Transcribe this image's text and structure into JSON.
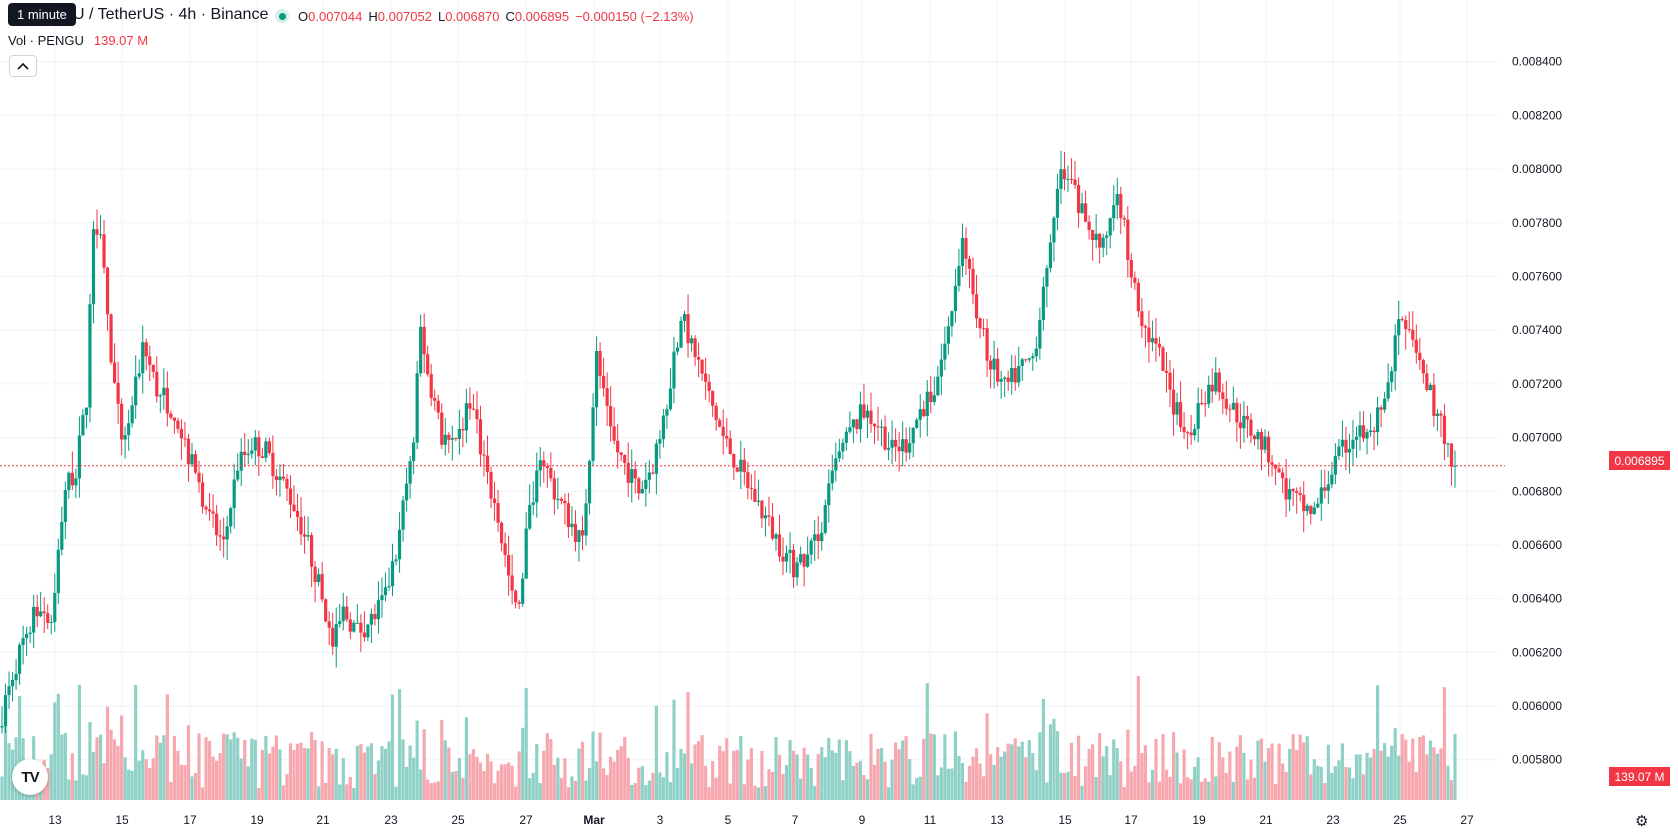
{
  "tooltip": "1 minute",
  "header": {
    "symbol": "U / TetherUS · 4h · Binance",
    "open_label": "O",
    "open": "0.007044",
    "high_label": "H",
    "high": "0.007052",
    "low_label": "L",
    "low": "0.006870",
    "close_label": "C",
    "close": "0.006895",
    "change": "−0.000150 (−2.13%)"
  },
  "volume": {
    "label": "Vol · PENGU",
    "value": "139.07 M",
    "tag": "139.07 M"
  },
  "current_price_tag": "0.006895",
  "logo_text": "TV",
  "colors": {
    "up": "#089981",
    "down": "#f23645",
    "up_volume": "#8fd1c6",
    "down_volume": "#f7a7ae",
    "grid": "#f0f3fa"
  },
  "chart_data": {
    "type": "candlestick",
    "title": "U / TetherUS · 4h · Binance",
    "current_price": 0.006895,
    "y_axis_ticks": [
      "0.008400",
      "0.008200",
      "0.008000",
      "0.007800",
      "0.007600",
      "0.007400",
      "0.007200",
      "0.007000",
      "0.006800",
      "0.006600",
      "0.006400",
      "0.006200",
      "0.006000",
      "0.005800"
    ],
    "x_axis_ticks": [
      "13",
      "15",
      "17",
      "19",
      "21",
      "23",
      "25",
      "27",
      "Mar",
      "3",
      "5",
      "7",
      "9",
      "11",
      "13",
      "15",
      "17",
      "19",
      "21",
      "23",
      "25",
      "27"
    ],
    "ylim": [
      0.00565,
      0.0086
    ],
    "grid": true,
    "trend_anchors": [
      [
        0,
        0.00592
      ],
      [
        4,
        0.00612
      ],
      [
        8,
        0.00628
      ],
      [
        12,
        0.00638
      ],
      [
        15,
        0.00632
      ],
      [
        19,
        0.00682
      ],
      [
        22,
        0.00688
      ],
      [
        25,
        0.00715
      ],
      [
        27,
        0.0078
      ],
      [
        29,
        0.0078
      ],
      [
        32,
        0.00728
      ],
      [
        35,
        0.007
      ],
      [
        38,
        0.0071
      ],
      [
        41,
        0.00735
      ],
      [
        45,
        0.00718
      ],
      [
        50,
        0.0071
      ],
      [
        55,
        0.0069
      ],
      [
        60,
        0.0067
      ],
      [
        64,
        0.0066
      ],
      [
        68,
        0.0069
      ],
      [
        72,
        0.00698
      ],
      [
        76,
        0.00695
      ],
      [
        80,
        0.00685
      ],
      [
        84,
        0.00675
      ],
      [
        88,
        0.0066
      ],
      [
        92,
        0.0064
      ],
      [
        95,
        0.00622
      ],
      [
        98,
        0.00635
      ],
      [
        102,
        0.00628
      ],
      [
        106,
        0.00632
      ],
      [
        110,
        0.0064
      ],
      [
        114,
        0.00665
      ],
      [
        118,
        0.007
      ],
      [
        120,
        0.0074
      ],
      [
        122,
        0.00725
      ],
      [
        126,
        0.007
      ],
      [
        130,
        0.00695
      ],
      [
        134,
        0.00715
      ],
      [
        138,
        0.0069
      ],
      [
        142,
        0.0067
      ],
      [
        146,
        0.0064
      ],
      [
        148,
        0.00635
      ],
      [
        150,
        0.00665
      ],
      [
        154,
        0.00695
      ],
      [
        158,
        0.0068
      ],
      [
        162,
        0.0067
      ],
      [
        166,
        0.0066
      ],
      [
        170,
        0.0073
      ],
      [
        174,
        0.007
      ],
      [
        178,
        0.0069
      ],
      [
        182,
        0.0068
      ],
      [
        186,
        0.0069
      ],
      [
        190,
        0.00715
      ],
      [
        194,
        0.00745
      ],
      [
        198,
        0.00732
      ],
      [
        202,
        0.00715
      ],
      [
        206,
        0.007
      ],
      [
        210,
        0.0069
      ],
      [
        214,
        0.0068
      ],
      [
        218,
        0.0067
      ],
      [
        222,
        0.0066
      ],
      [
        226,
        0.00652
      ],
      [
        230,
        0.00655
      ],
      [
        234,
        0.00668
      ],
      [
        238,
        0.0069
      ],
      [
        242,
        0.00702
      ],
      [
        246,
        0.0071
      ],
      [
        250,
        0.00705
      ],
      [
        254,
        0.00695
      ],
      [
        258,
        0.00698
      ],
      [
        262,
        0.0071
      ],
      [
        266,
        0.00718
      ],
      [
        270,
        0.0074
      ],
      [
        274,
        0.00775
      ],
      [
        278,
        0.00745
      ],
      [
        282,
        0.00728
      ],
      [
        286,
        0.00718
      ],
      [
        290,
        0.00725
      ],
      [
        294,
        0.0073
      ],
      [
        298,
        0.0076
      ],
      [
        302,
        0.008
      ],
      [
        306,
        0.0079
      ],
      [
        310,
        0.00778
      ],
      [
        314,
        0.0077
      ],
      [
        318,
        0.00795
      ],
      [
        322,
        0.0076
      ],
      [
        326,
        0.0074
      ],
      [
        330,
        0.0073
      ],
      [
        334,
        0.00712
      ],
      [
        338,
        0.007
      ],
      [
        342,
        0.00715
      ],
      [
        346,
        0.00722
      ],
      [
        350,
        0.00712
      ],
      [
        354,
        0.00705
      ],
      [
        358,
        0.007
      ],
      [
        362,
        0.00692
      ],
      [
        366,
        0.0068
      ],
      [
        370,
        0.00675
      ],
      [
        374,
        0.00672
      ],
      [
        378,
        0.00685
      ],
      [
        382,
        0.00695
      ],
      [
        386,
        0.00702
      ],
      [
        390,
        0.007
      ],
      [
        394,
        0.00715
      ],
      [
        398,
        0.00742
      ],
      [
        402,
        0.00735
      ],
      [
        406,
        0.0072
      ],
      [
        410,
        0.00705
      ],
      [
        413,
        0.006895
      ]
    ],
    "series_count": 414
  }
}
